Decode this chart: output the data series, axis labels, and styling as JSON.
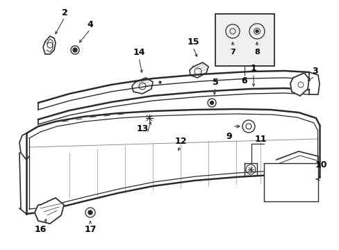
{
  "background_color": "#ffffff",
  "line_color": "#2a2a2a",
  "label_color": "#000000",
  "figsize": [
    4.89,
    3.6
  ],
  "dpi": 100
}
